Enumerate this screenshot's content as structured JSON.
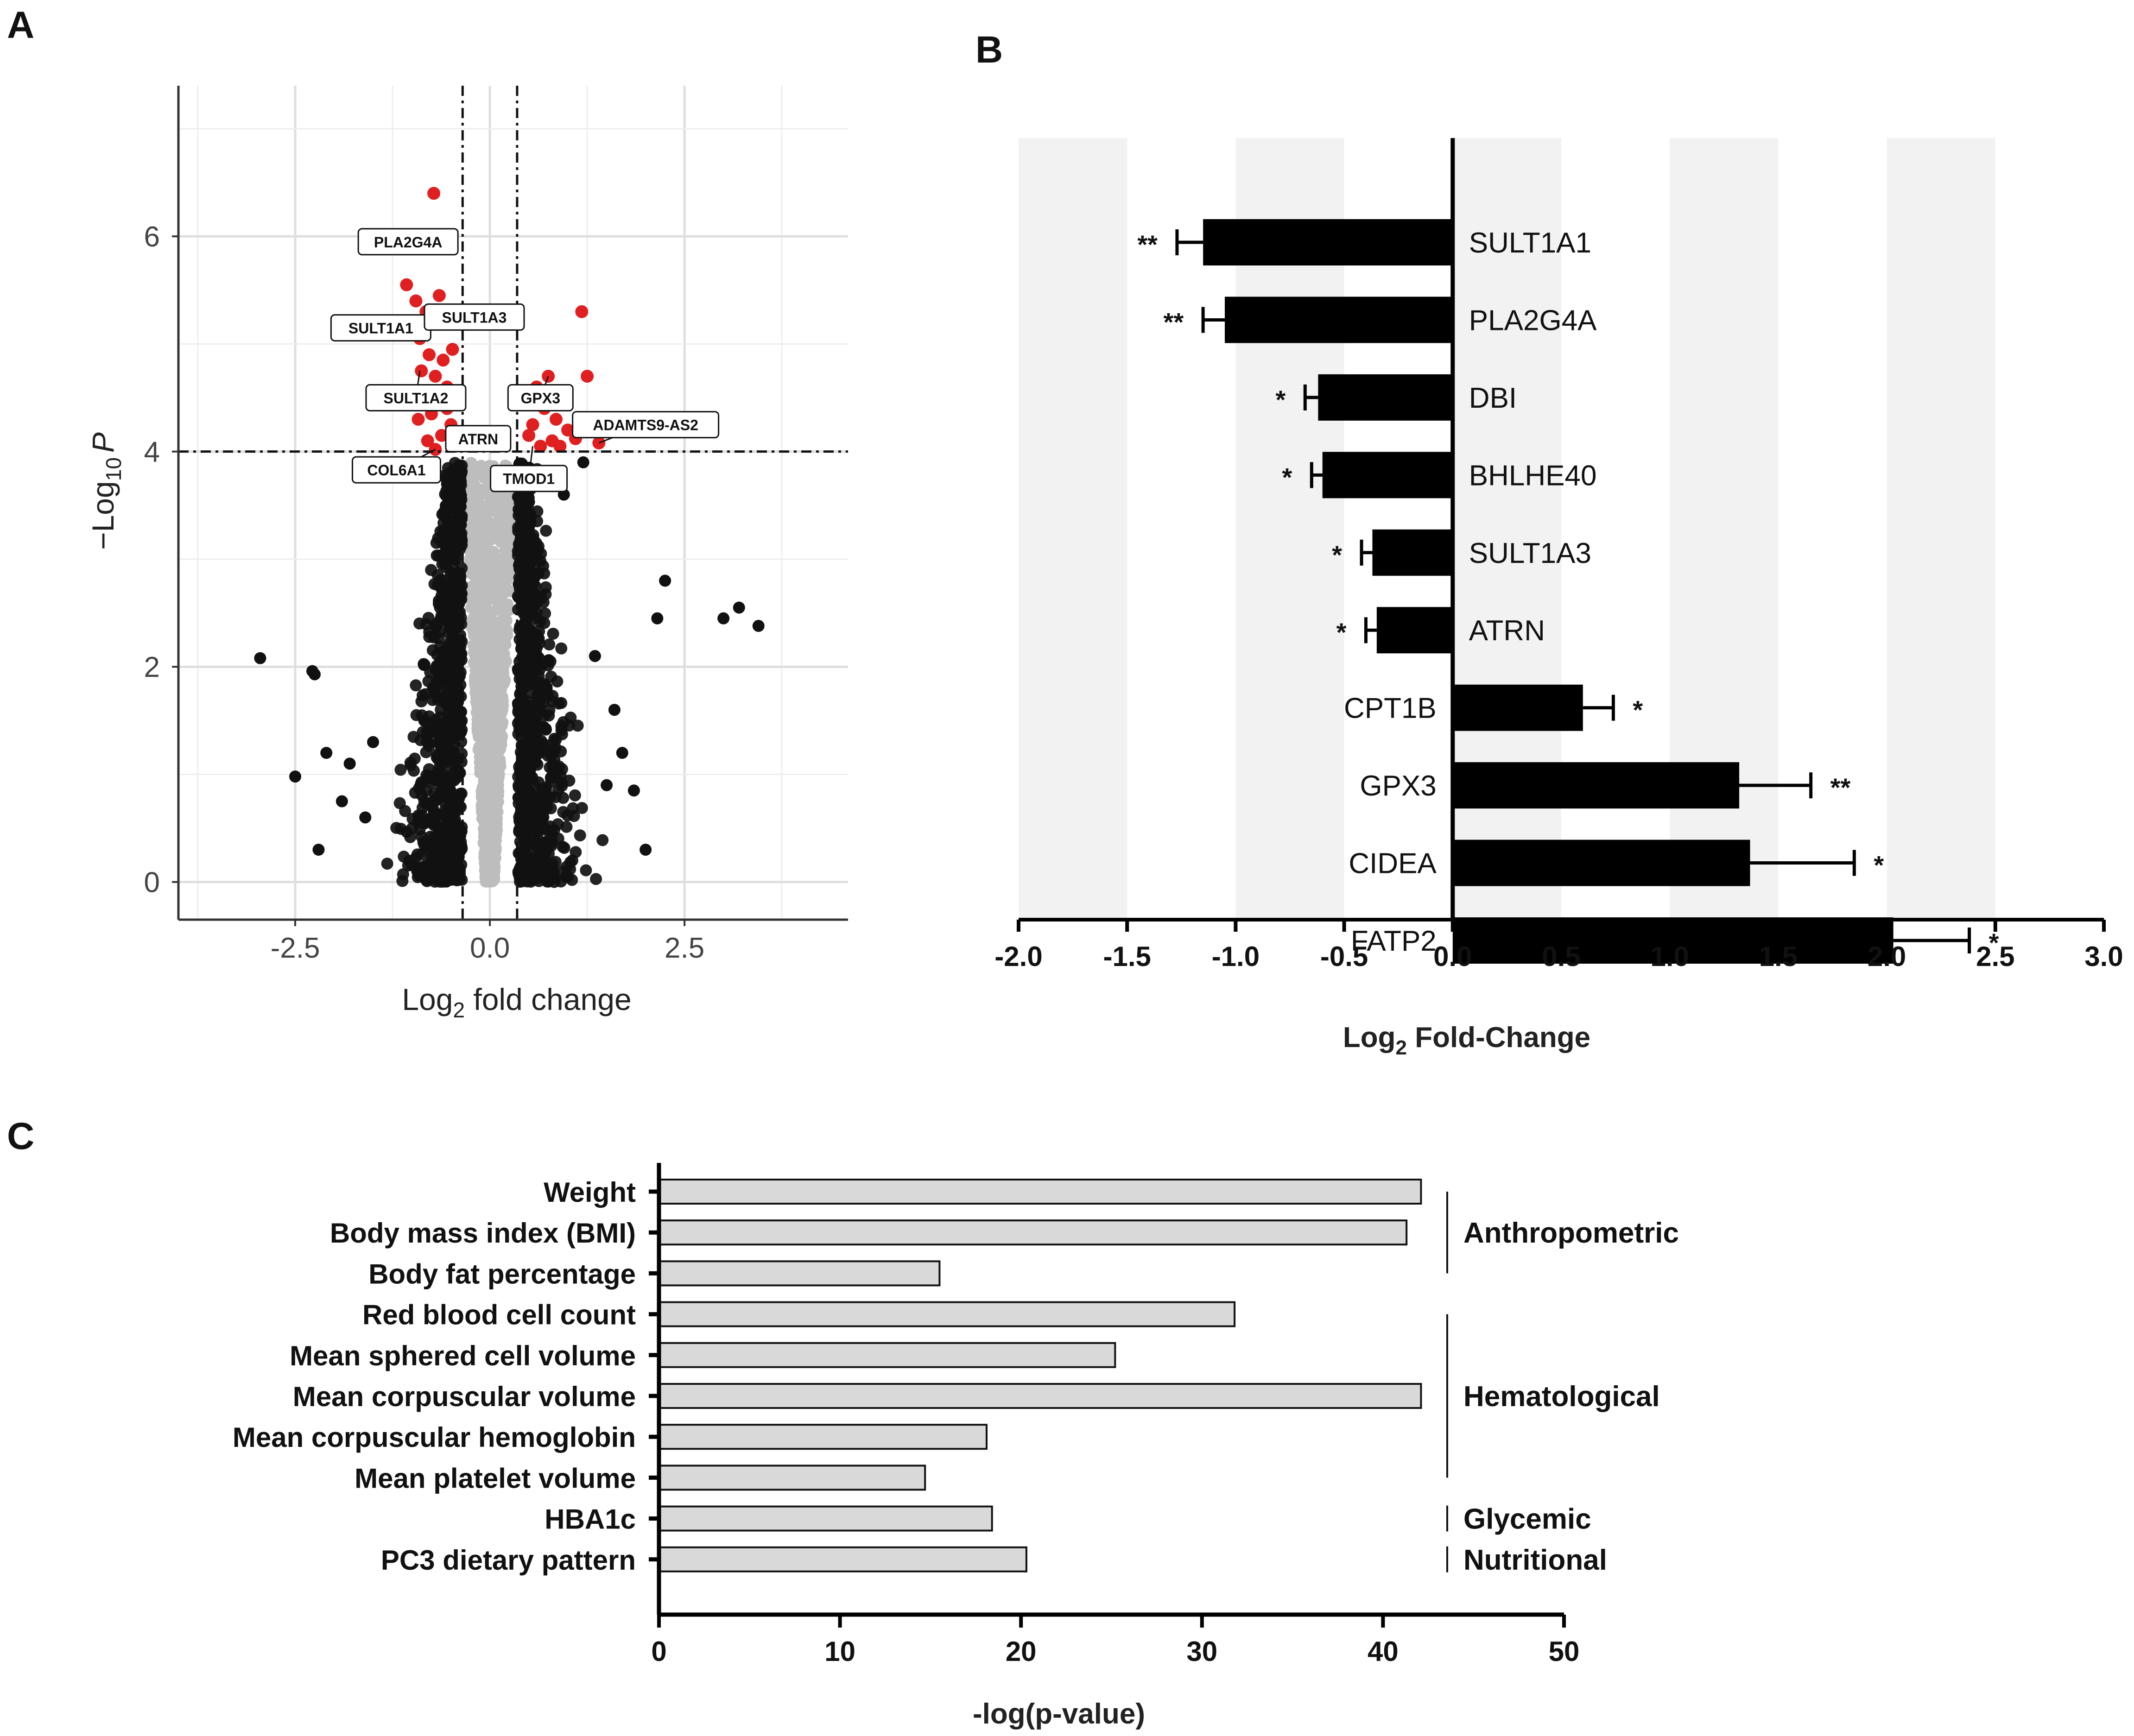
{
  "panels": {
    "a": {
      "label": "A"
    },
    "b": {
      "label": "B"
    },
    "c": {
      "label": "C"
    }
  },
  "chart_data": [
    {
      "type": "scatter",
      "panel": "A",
      "title": "",
      "xlabel_main": "Log",
      "xlabel_sub": "2",
      "xlabel_rest": " fold change",
      "ylabel_prefix": "−Log",
      "ylabel_sub": "10",
      "ylabel_var": "P",
      "xlim": [
        -4.0,
        4.6
      ],
      "ylim": [
        -0.35,
        7.4
      ],
      "xticks": [
        -2.5,
        0.0,
        2.5
      ],
      "xtick_labels": [
        "-2.5",
        "0.0",
        "2.5"
      ],
      "yticks": [
        0,
        2,
        4,
        6
      ],
      "ytick_labels": [
        "0",
        "2",
        "4",
        "6"
      ],
      "grid": true,
      "fc_cutoff": 0.35,
      "p_cutoff": 4.0,
      "colors": {
        "significant": "#e02020",
        "other": "#111111",
        "ns": "#bdbdbd"
      },
      "significant_points": [
        [
          -0.72,
          6.4
        ],
        [
          -0.97,
          5.95
        ],
        [
          -1.07,
          5.55
        ],
        [
          -0.95,
          5.4
        ],
        [
          -0.82,
          5.3
        ],
        [
          -0.65,
          5.45
        ],
        [
          -0.55,
          5.2
        ],
        [
          -0.9,
          5.05
        ],
        [
          -0.78,
          4.9
        ],
        [
          -0.6,
          4.85
        ],
        [
          -0.48,
          4.95
        ],
        [
          -0.7,
          4.7
        ],
        [
          -0.85,
          4.55
        ],
        [
          -0.55,
          4.6
        ],
        [
          -0.65,
          4.45
        ],
        [
          -0.75,
          4.35
        ],
        [
          -0.92,
          4.3
        ],
        [
          -0.5,
          4.25
        ],
        [
          -0.62,
          4.15
        ],
        [
          -0.8,
          4.1
        ],
        [
          -0.45,
          4.05
        ],
        [
          -0.7,
          4.02
        ],
        [
          -0.55,
          4.4
        ],
        [
          -0.88,
          4.75
        ],
        [
          0.5,
          4.15
        ],
        [
          0.6,
          4.6
        ],
        [
          0.7,
          4.4
        ],
        [
          0.85,
          4.3
        ],
        [
          0.55,
          4.25
        ],
        [
          0.95,
          4.55
        ],
        [
          1.18,
          5.3
        ],
        [
          1.25,
          4.7
        ],
        [
          1.4,
          4.08
        ],
        [
          0.8,
          4.1
        ],
        [
          1.0,
          4.2
        ],
        [
          0.65,
          4.05
        ],
        [
          0.45,
          4.5
        ],
        [
          1.1,
          4.12
        ],
        [
          0.75,
          4.7
        ],
        [
          0.9,
          4.05
        ]
      ],
      "black_points": [
        [
          -2.95,
          2.08
        ],
        [
          -2.28,
          1.96
        ],
        [
          -2.25,
          1.93
        ],
        [
          -2.1,
          1.2
        ],
        [
          -2.5,
          0.98
        ],
        [
          -2.2,
          0.3
        ],
        [
          3.2,
          2.55
        ],
        [
          3.0,
          2.45
        ],
        [
          3.45,
          2.38
        ],
        [
          2.25,
          2.8
        ],
        [
          2.15,
          2.45
        ],
        [
          2.0,
          0.3
        ],
        [
          1.7,
          1.2
        ],
        [
          1.5,
          0.9
        ],
        [
          1.6,
          1.6
        ],
        [
          -1.8,
          1.1
        ],
        [
          -1.6,
          0.6
        ],
        [
          -1.5,
          1.3
        ],
        [
          1.2,
          3.9
        ],
        [
          -0.55,
          3.7
        ],
        [
          0.95,
          3.6
        ],
        [
          1.85,
          0.85
        ],
        [
          -1.9,
          0.75
        ],
        [
          1.35,
          2.1
        ]
      ],
      "labels": [
        {
          "text": "PLA2G4A",
          "x": -1.05,
          "y": 5.95,
          "px": -1.15,
          "py": 5.85
        },
        {
          "text": "SULT1A1",
          "x": -1.4,
          "y": 5.15,
          "px": -1.0,
          "py": 5.05
        },
        {
          "text": "SULT1A3",
          "x": -0.2,
          "y": 5.25,
          "px": -0.55,
          "py": 5.2
        },
        {
          "text": "SULT1A2",
          "x": -0.95,
          "y": 4.5,
          "px": -0.9,
          "py": 4.75
        },
        {
          "text": "GPX3",
          "x": 0.65,
          "y": 4.5,
          "px": 0.75,
          "py": 4.7
        },
        {
          "text": "ADAMTS9-AS2",
          "x": 2.0,
          "y": 4.25,
          "px": 1.4,
          "py": 4.08
        },
        {
          "text": "ATRN",
          "x": -0.15,
          "y": 4.12,
          "px": -0.4,
          "py": 4.05
        },
        {
          "text": "COL6A1",
          "x": -1.2,
          "y": 3.83,
          "px": -0.7,
          "py": 4.02
        },
        {
          "text": "TMOD1",
          "x": 0.5,
          "y": 3.75,
          "px": 0.55,
          "py": 4.05
        }
      ]
    },
    {
      "type": "bar",
      "orientation": "horizontal",
      "panel": "B",
      "xlabel_main": "Log",
      "xlabel_sub": "2",
      "xlabel_rest": " Fold-Change",
      "xlim": [
        -2.0,
        3.0
      ],
      "xticks": [
        -2.0,
        -1.5,
        -1.0,
        -0.5,
        0.0,
        0.5,
        1.0,
        1.5,
        2.0,
        2.5,
        3.0
      ],
      "xtick_labels": [
        "-2.0",
        "-1.5",
        "-1.0",
        "-0.5",
        "0.0",
        "0.5",
        "1.0",
        "1.5",
        "2.0",
        "2.5",
        "3.0"
      ],
      "categories": [
        "SULT1A1",
        "PLA2G4A",
        "DBI",
        "BHLHE40",
        "SULT1A3",
        "ATRN",
        "CPT1B",
        "GPX3",
        "CIDEA",
        "FATP2"
      ],
      "values": [
        -1.15,
        -1.05,
        -0.62,
        -0.6,
        -0.37,
        -0.35,
        0.6,
        1.32,
        1.37,
        2.03
      ],
      "errors": [
        0.12,
        0.1,
        0.06,
        0.05,
        0.05,
        0.05,
        0.14,
        0.33,
        0.48,
        0.35
      ],
      "significance": [
        "**",
        "**",
        "*",
        "*",
        "*",
        "*",
        "*",
        "**",
        "*",
        "*"
      ]
    },
    {
      "type": "bar",
      "orientation": "horizontal",
      "panel": "C",
      "xlabel": "-log(p-value)",
      "xlim": [
        0,
        50
      ],
      "xticks": [
        0,
        10,
        20,
        30,
        40,
        50
      ],
      "xtick_labels": [
        "0",
        "10",
        "20",
        "30",
        "40",
        "50"
      ],
      "categories": [
        "Weight",
        "Body mass index (BMI)",
        "Body fat percentage",
        "Red blood cell count",
        "Mean sphered cell volume",
        "Mean corpuscular volume",
        "Mean corpuscular hemoglobin",
        "Mean platelet volume",
        "HBA1c",
        "PC3 dietary pattern"
      ],
      "values": [
        42.1,
        41.3,
        15.5,
        31.8,
        25.2,
        42.1,
        18.1,
        14.7,
        18.4,
        20.3
      ],
      "groups": [
        {
          "name": "Anthropometric",
          "start": 0,
          "end": 2
        },
        {
          "name": "Hematological",
          "start": 3,
          "end": 7
        },
        {
          "name": "Glycemic",
          "start": 8,
          "end": 8
        },
        {
          "name": "Nutritional",
          "start": 9,
          "end": 9
        }
      ]
    }
  ]
}
